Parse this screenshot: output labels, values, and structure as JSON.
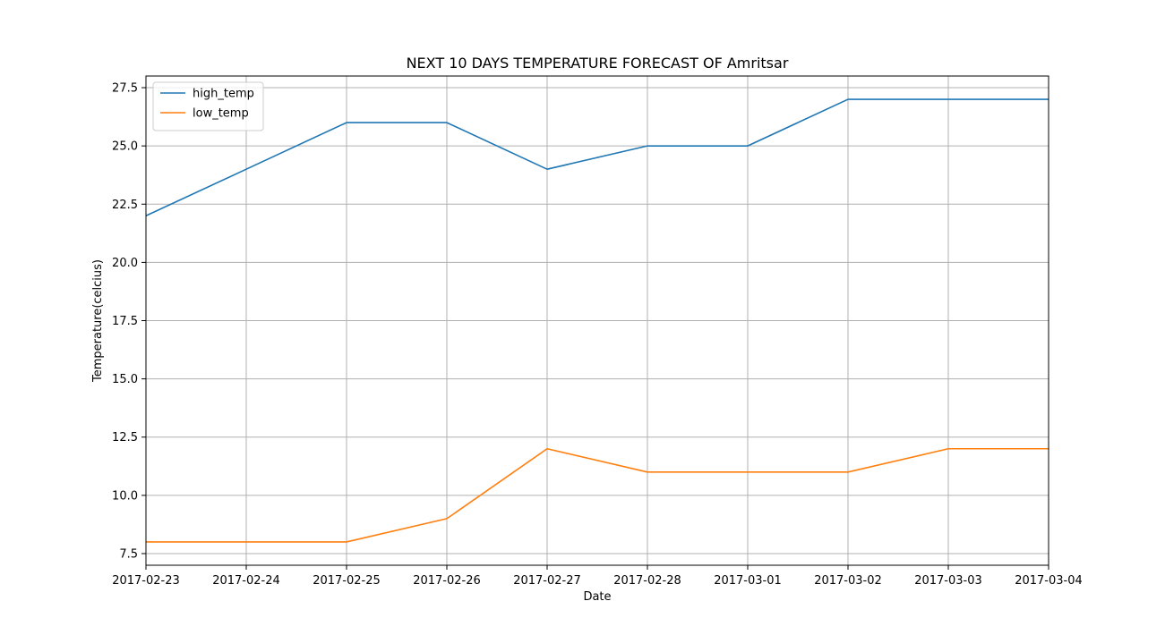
{
  "chart_data": {
    "type": "line",
    "title": "NEXT 10 DAYS TEMPERATURE FORECAST OF Amritsar",
    "xlabel": "Date",
    "ylabel": "Temperature(celcius)",
    "x": [
      "2017-02-23",
      "2017-02-24",
      "2017-02-25",
      "2017-02-26",
      "2017-02-27",
      "2017-02-28",
      "2017-03-01",
      "2017-03-02",
      "2017-03-03",
      "2017-03-04"
    ],
    "xlim": [
      "2017-02-23",
      "2017-03-04"
    ],
    "ylim": [
      7.0,
      28.0
    ],
    "yticks": [
      7.5,
      10.0,
      12.5,
      15.0,
      17.5,
      20.0,
      22.5,
      25.0,
      27.5
    ],
    "ytick_labels": [
      "7.5",
      "10.0",
      "12.5",
      "15.0",
      "17.5",
      "20.0",
      "22.5",
      "25.0",
      "27.5"
    ],
    "grid": true,
    "legend": "top-left",
    "series": [
      {
        "name": "high_temp",
        "color": "#1f77b4",
        "values": [
          22,
          24,
          26,
          26,
          24,
          25,
          25,
          27,
          27,
          27
        ]
      },
      {
        "name": "low_temp",
        "color": "#ff7f0e",
        "values": [
          8,
          8,
          8,
          9,
          12,
          11,
          11,
          11,
          12,
          12
        ]
      }
    ]
  }
}
